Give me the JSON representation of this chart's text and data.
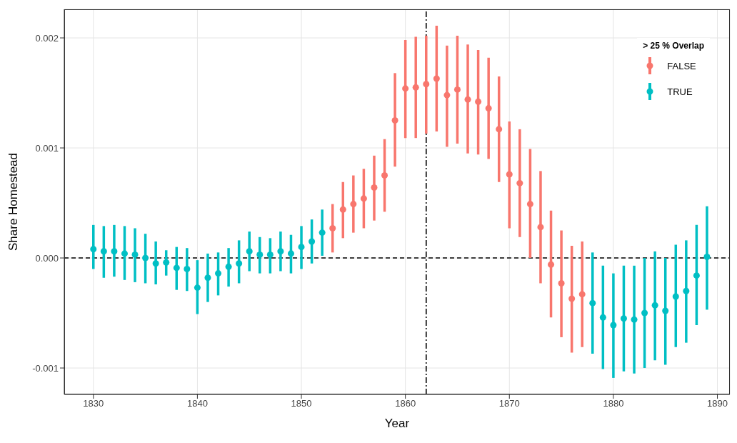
{
  "chart_data": {
    "type": "scatter",
    "xlabel": "Year",
    "ylabel": "Share Homestead",
    "legend_title": "> 25 % Overlap",
    "legend": "top right",
    "grid": true,
    "marker": "circle",
    "x": [
      1830,
      1831,
      1832,
      1833,
      1834,
      1835,
      1836,
      1837,
      1838,
      1839,
      1840,
      1841,
      1842,
      1843,
      1844,
      1845,
      1846,
      1847,
      1848,
      1849,
      1850,
      1851,
      1852,
      1853,
      1854,
      1855,
      1856,
      1857,
      1858,
      1859,
      1860,
      1861,
      1862,
      1863,
      1864,
      1865,
      1866,
      1867,
      1868,
      1869,
      1870,
      1871,
      1872,
      1873,
      1874,
      1875,
      1876,
      1877,
      1878,
      1879,
      1880,
      1881,
      1882,
      1883,
      1884,
      1885,
      1886,
      1887,
      1888,
      1889
    ],
    "xlim": [
      1827.2,
      1891.2
    ],
    "xticks": [
      1830,
      1840,
      1850,
      1860,
      1870,
      1880,
      1890
    ],
    "ylim": [
      -0.00124,
      0.00226
    ],
    "yticks": [
      {
        "value": -0.001,
        "label": "-0.001"
      },
      {
        "value": 0,
        "label": "0.000"
      },
      {
        "value": 0.001,
        "label": "0.001"
      },
      {
        "value": 0.002,
        "label": "0.002"
      }
    ],
    "ref_lines": [
      {
        "axis": "y",
        "value": 0,
        "line_style": "dashed",
        "color": "#000000"
      },
      {
        "axis": "x",
        "value": 1862,
        "line_style": "dashdot",
        "color": "#000000"
      }
    ],
    "series": [
      {
        "name": "FALSE",
        "color": "#f8766d",
        "values": [
          null,
          null,
          null,
          null,
          null,
          null,
          null,
          null,
          null,
          null,
          null,
          null,
          null,
          null,
          null,
          null,
          null,
          null,
          null,
          null,
          null,
          null,
          null,
          0.00027,
          0.00044,
          0.00049,
          0.00054,
          0.00064,
          0.00075,
          0.00125,
          0.00154,
          0.00155,
          0.00158,
          0.00163,
          0.00148,
          0.00153,
          0.00144,
          0.00142,
          0.00136,
          0.00117,
          0.00076,
          0.00068,
          0.00049,
          0.00028,
          -6e-05,
          -0.00023,
          -0.00037,
          -0.00033,
          null,
          null,
          null,
          null,
          null,
          null,
          null,
          null,
          null,
          null,
          null,
          null
        ],
        "errors": [
          null,
          null,
          null,
          null,
          null,
          null,
          null,
          null,
          null,
          null,
          null,
          null,
          null,
          null,
          null,
          null,
          null,
          null,
          null,
          null,
          null,
          null,
          null,
          [
            5e-05,
            0.00049
          ],
          [
            0.00018,
            0.00069
          ],
          [
            0.00023,
            0.00075
          ],
          [
            0.00027,
            0.00081
          ],
          [
            0.00034,
            0.00093
          ],
          [
            0.00042,
            0.00108
          ],
          [
            0.00083,
            0.00168
          ],
          [
            0.00109,
            0.00198
          ],
          [
            0.00109,
            0.00201
          ],
          [
            0.00113,
            0.00202
          ],
          [
            0.00115,
            0.00211
          ],
          [
            0.00101,
            0.00193
          ],
          [
            0.00104,
            0.00202
          ],
          [
            0.00095,
            0.00194
          ],
          [
            0.00094,
            0.00189
          ],
          [
            0.0009,
            0.00182
          ],
          [
            0.00069,
            0.00165
          ],
          [
            0.00027,
            0.00124
          ],
          [
            0.00019,
            0.00117
          ],
          [
            0,
            0.00099
          ],
          [
            -0.00023,
            0.00079
          ],
          [
            -0.00054,
            0.00043
          ],
          [
            -0.00072,
            0.00025
          ],
          [
            -0.00086,
            0.00011
          ],
          [
            -0.00081,
            0.00015
          ],
          null,
          null,
          null,
          null,
          null,
          null,
          null,
          null,
          null,
          null,
          null,
          null
        ]
      },
      {
        "name": "TRUE",
        "color": "#00bfc4",
        "values": [
          8e-05,
          6e-05,
          6e-05,
          4e-05,
          3e-05,
          0,
          -5e-05,
          -4e-05,
          -9e-05,
          -0.0001,
          -0.00027,
          -0.00018,
          -0.00014,
          -8e-05,
          -5e-05,
          6e-05,
          3e-05,
          3e-05,
          6e-05,
          4e-05,
          0.0001,
          0.00015,
          0.00023,
          null,
          null,
          null,
          null,
          null,
          null,
          null,
          null,
          null,
          null,
          null,
          null,
          null,
          null,
          null,
          null,
          null,
          null,
          null,
          null,
          null,
          null,
          null,
          null,
          null,
          -0.00041,
          -0.00054,
          -0.00061,
          -0.00055,
          -0.00056,
          -0.0005,
          -0.00043,
          -0.00048,
          -0.00035,
          -0.0003,
          -0.00016,
          1e-05
        ],
        "errors": [
          [
            -0.0001,
            0.0003
          ],
          [
            -0.00018,
            0.00029
          ],
          [
            -0.00017,
            0.0003
          ],
          [
            -0.0002,
            0.00029
          ],
          [
            -0.00022,
            0.00027
          ],
          [
            -0.00023,
            0.00022
          ],
          [
            -0.00024,
            0.00015
          ],
          [
            -0.00016,
            7e-05
          ],
          [
            -0.00029,
            0.0001
          ],
          [
            -0.0003,
            9e-05
          ],
          [
            -0.00051,
            -2e-05
          ],
          [
            -0.0004,
            4e-05
          ],
          [
            -0.00034,
            5e-05
          ],
          [
            -0.00026,
            9e-05
          ],
          [
            -0.00023,
            0.00016
          ],
          [
            -0.00012,
            0.00024
          ],
          [
            -0.00014,
            0.00019
          ],
          [
            -0.00014,
            0.00018
          ],
          [
            -0.00012,
            0.00024
          ],
          [
            -0.00014,
            0.00021
          ],
          [
            -0.0001,
            0.00029
          ],
          [
            -5e-05,
            0.00035
          ],
          [
            2e-05,
            0.00044
          ],
          null,
          null,
          null,
          null,
          null,
          null,
          null,
          null,
          null,
          null,
          null,
          null,
          null,
          null,
          null,
          null,
          null,
          null,
          null,
          null,
          null,
          null,
          null,
          null,
          null,
          [
            -0.00087,
            5e-05
          ],
          [
            -0.00101,
            -7e-05
          ],
          [
            -0.00109,
            -0.00014
          ],
          [
            -0.00103,
            -7e-05
          ],
          [
            -0.00105,
            -7e-05
          ],
          [
            -0.001,
            0
          ],
          [
            -0.00093,
            6e-05
          ],
          [
            -0.00097,
            0
          ],
          [
            -0.00081,
            0.00012
          ],
          [
            -0.00077,
            0.00016
          ],
          [
            -0.00061,
            0.0003
          ],
          [
            -0.00047,
            0.00047
          ]
        ]
      }
    ]
  }
}
